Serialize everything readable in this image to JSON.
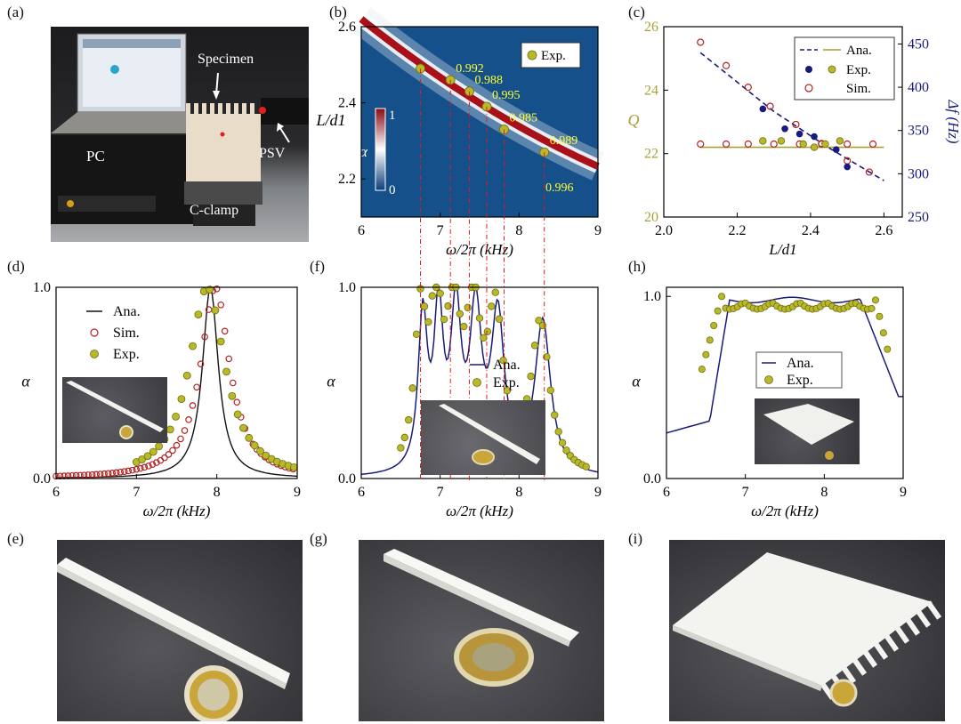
{
  "panel_labels": {
    "a": "(a)",
    "b": "(b)",
    "c": "(c)",
    "d": "(d)",
    "e": "(e)",
    "f": "(f)",
    "g": "(g)",
    "h": "(h)",
    "i": "(i)"
  },
  "setup_photo": {
    "specimen": "Specimen",
    "pc": "PC",
    "psv": "PSV",
    "clamp": "C-clamp"
  },
  "colors": {
    "exp": "#b8b829",
    "exp_edge": "#6e6e10",
    "sim": "#b22222",
    "ana_navy": "#1a1a7a",
    "ana_olive": "#a8a032",
    "heat_red": "#a8101a",
    "heat_blue": "#16508a",
    "guide": "#e11b1b",
    "label_yellow": "#ffff33"
  },
  "chart_data": [
    {
      "id": "b",
      "type": "heatmap",
      "xlabel": "ω/2π (kHz)",
      "ylabel": "L/d1",
      "xlim": [
        6,
        9
      ],
      "ylim": [
        2.1,
        2.6
      ],
      "xticks": [
        "6",
        "7",
        "8",
        "9"
      ],
      "yticks": [
        "2.2",
        "2.4",
        "2.6"
      ],
      "colorbar": {
        "label": "α",
        "max": "1",
        "min": "0"
      },
      "legend": "Exp.",
      "points": [
        {
          "x": 6.75,
          "y": 2.49,
          "label": ""
        },
        {
          "x": 7.13,
          "y": 2.46,
          "label": "0.992"
        },
        {
          "x": 7.37,
          "y": 2.43,
          "label": "0.988"
        },
        {
          "x": 7.59,
          "y": 2.39,
          "label": "0.995"
        },
        {
          "x": 7.81,
          "y": 2.33,
          "label": "0.985"
        },
        {
          "x": 8.32,
          "y": 2.27,
          "label": "0.989"
        },
        {
          "x": 8.4,
          "y": 2.27,
          "label": "0.996"
        }
      ]
    },
    {
      "id": "c",
      "type": "scatter",
      "xlabel": "L/d1",
      "ylabel": "Q",
      "y2label": "Δf (Hz)",
      "xlim": [
        2.0,
        2.65
      ],
      "ylim": [
        20,
        26
      ],
      "y2lim": [
        250,
        470
      ],
      "xticks": [
        "2.0",
        "2.2",
        "2.4",
        "2.6"
      ],
      "yticks": [
        "20",
        "22",
        "24",
        "26"
      ],
      "y2ticks": [
        "250",
        "300",
        "350",
        "400",
        "450"
      ],
      "legend": [
        "Ana.",
        "Exp.",
        "Sim."
      ],
      "q_ana": 22.2,
      "df_ana": [
        [
          2.1,
          440
        ],
        [
          2.3,
          372
        ],
        [
          2.45,
          330
        ],
        [
          2.6,
          292
        ]
      ],
      "sim_q_x": [
        2.1,
        2.17,
        2.23,
        2.3,
        2.37,
        2.43,
        2.5,
        2.57
      ],
      "sim_q_y": 22.3,
      "sim_df": [
        [
          2.1,
          452
        ],
        [
          2.17,
          425
        ],
        [
          2.23,
          400
        ],
        [
          2.29,
          378
        ],
        [
          2.36,
          357
        ],
        [
          2.43,
          335
        ],
        [
          2.5,
          315
        ],
        [
          2.56,
          302
        ]
      ],
      "exp_q": [
        [
          2.27,
          22.4
        ],
        [
          2.32,
          22.4
        ],
        [
          2.38,
          22.3
        ],
        [
          2.41,
          22.2
        ],
        [
          2.44,
          22.3
        ],
        [
          2.48,
          22.4
        ]
      ],
      "exp_df": [
        [
          2.27,
          375
        ],
        [
          2.33,
          352
        ],
        [
          2.37,
          346
        ],
        [
          2.41,
          343
        ],
        [
          2.47,
          328
        ],
        [
          2.5,
          308
        ]
      ]
    },
    {
      "id": "d",
      "type": "line",
      "xlabel": "ω/2π (kHz)",
      "ylabel": "α",
      "xlim": [
        6,
        9
      ],
      "ylim": [
        0,
        1
      ],
      "xticks": [
        "6",
        "7",
        "8",
        "9"
      ],
      "yticks": [
        "0.0",
        "1.0"
      ],
      "legend": [
        "Ana.",
        "Sim.",
        "Exp."
      ]
    },
    {
      "id": "f",
      "type": "line",
      "xlabel": "ω/2π (kHz)",
      "ylabel": "α",
      "xlim": [
        6,
        9
      ],
      "ylim": [
        0,
        1
      ],
      "xticks": [
        "6",
        "7",
        "8",
        "9"
      ],
      "yticks": [
        "0.0",
        "1.0"
      ],
      "legend": [
        "Ana.",
        "Exp."
      ]
    },
    {
      "id": "h",
      "type": "line",
      "xlabel": "ω/2π (kHz)",
      "ylabel": "α",
      "xlim": [
        6,
        9
      ],
      "ylim": [
        0,
        1.05
      ],
      "xticks": [
        "6",
        "7",
        "8",
        "9"
      ],
      "yticks": [
        "0.0",
        "1.0"
      ],
      "legend": [
        "Ana.",
        "Exp."
      ]
    }
  ]
}
